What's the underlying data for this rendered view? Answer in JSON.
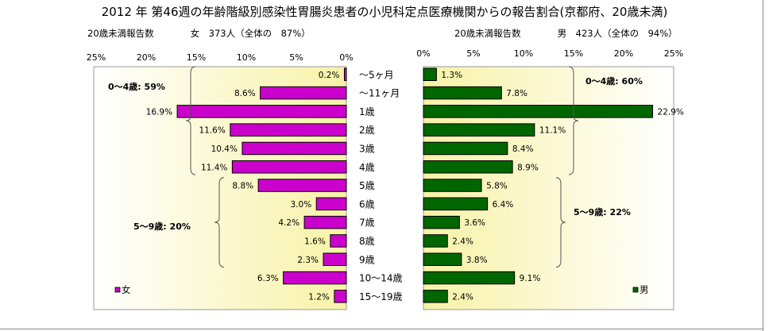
{
  "title": "2012 年 第46週の年齢階級別感染性胃腸炎患者の小児科定点医療機関からの報告割合(京都府、20歳未満)",
  "chart_data": {
    "type": "bar",
    "orientation": "horizontal",
    "categories": [
      "～5ヶ月",
      "～11ヶ月",
      "1歳",
      "2歳",
      "3歳",
      "4歳",
      "5歳",
      "6歳",
      "7歳",
      "8歳",
      "9歳",
      "10～14歳",
      "15～19歳"
    ],
    "ylim": [
      0,
      25
    ],
    "tick_labels": [
      "0%",
      "5%",
      "10%",
      "15%",
      "20%",
      "25%"
    ],
    "grid": false,
    "panels": [
      {
        "side": "left",
        "subtitle": "20歳未満報告数　　　　女　373人（全体の　87%）",
        "series": [
          {
            "name": "女",
            "color": "#cc00cc",
            "values": [
              0.2,
              8.6,
              16.9,
              11.6,
              10.4,
              11.4,
              8.8,
              3.0,
              4.2,
              1.6,
              2.3,
              6.3,
              1.2
            ],
            "labels": [
              "0.2%",
              "8.6%",
              "16.9%",
              "11.6%",
              "10.4%",
              "11.4%",
              "8.8%",
              "3.0%",
              "4.2%",
              "1.6%",
              "2.3%",
              "6.3%",
              "1.2%"
            ]
          }
        ],
        "groups": [
          {
            "label": "0～4歳: 59%",
            "from": 0,
            "to": 5
          },
          {
            "label": "5～9歳: 20%",
            "from": 6,
            "to": 10
          }
        ],
        "legend": "bottom-left"
      },
      {
        "side": "right",
        "subtitle": "20歳未満報告数　　　　男　423人（全体の　94%）",
        "series": [
          {
            "name": "男",
            "color": "#006600",
            "values": [
              1.3,
              7.8,
              22.9,
              11.1,
              8.4,
              8.9,
              5.8,
              6.4,
              3.6,
              2.4,
              3.8,
              9.1,
              2.4
            ],
            "labels": [
              "1.3%",
              "7.8%",
              "22.9%",
              "11.1%",
              "8.4%",
              "8.9%",
              "5.8%",
              "6.4%",
              "3.6%",
              "2.4%",
              "3.8%",
              "9.1%",
              "2.4%"
            ]
          }
        ],
        "groups": [
          {
            "label": "0～4歳: 60%",
            "from": 0,
            "to": 5
          },
          {
            "label": "5～9歳: 22%",
            "from": 6,
            "to": 10
          }
        ],
        "legend": "bottom-right"
      }
    ]
  }
}
